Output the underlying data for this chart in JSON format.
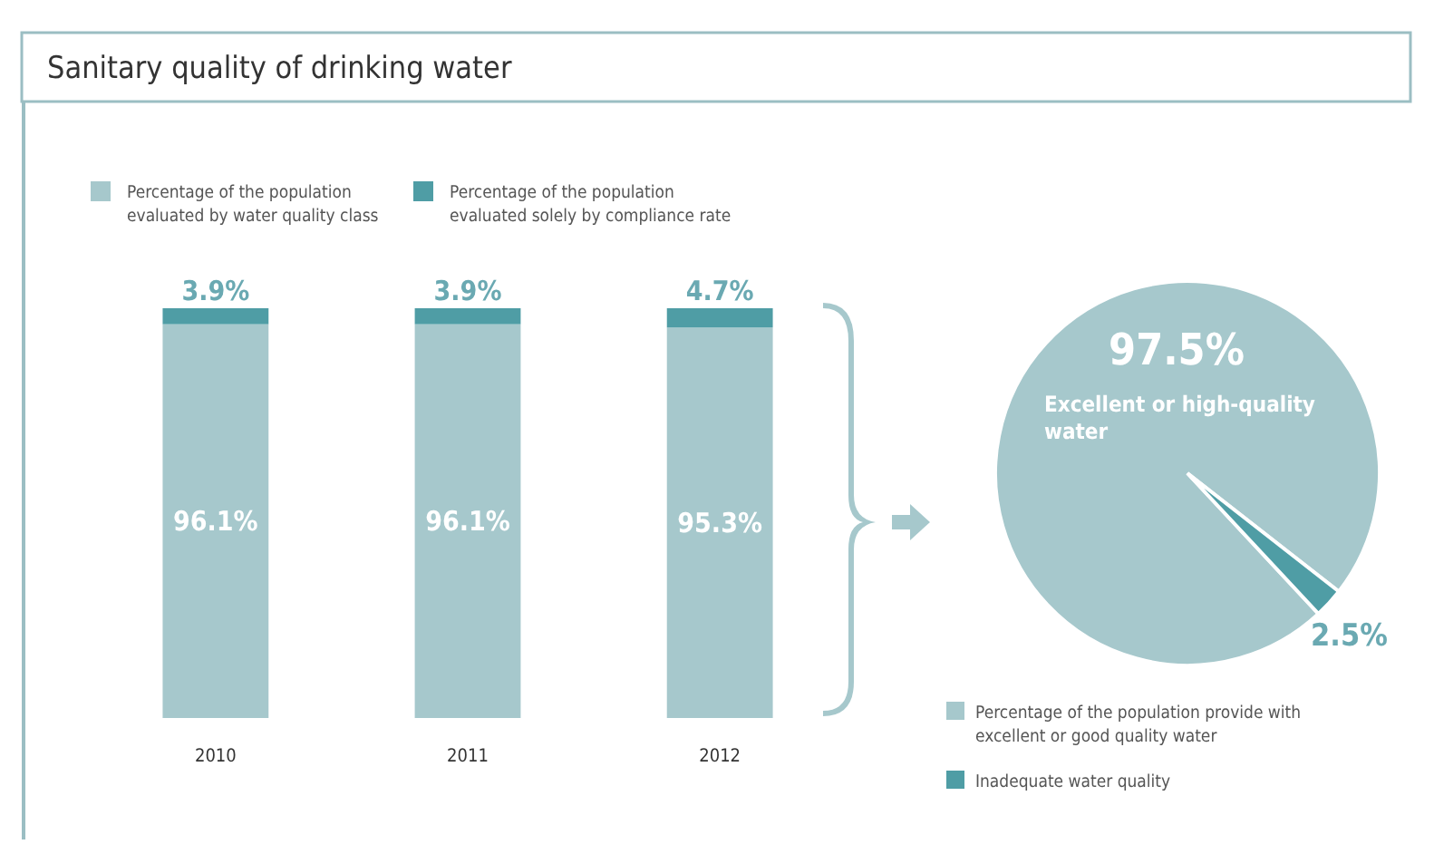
{
  "chart_data": [
    {
      "type": "bar",
      "title": "Sanitary quality of drinking water",
      "stacked": true,
      "legend": "top",
      "categories": [
        "2010",
        "2011",
        "2012"
      ],
      "series": [
        {
          "name": "Percentage of the population evaluated by water quality class",
          "color": "#a6c8cc",
          "values": [
            96.1,
            96.1,
            95.3
          ],
          "value_labels": [
            "96.1%",
            "96.1%",
            "95.3%"
          ]
        },
        {
          "name": "Percentage of the population evaluated solely by compliance rate",
          "color": "#4f9da5",
          "values": [
            3.9,
            3.9,
            4.7
          ],
          "value_labels": [
            "3.9%",
            "3.9%",
            "4.7%"
          ]
        }
      ]
    },
    {
      "type": "pie",
      "legend": "bottom",
      "categories": [
        "Percentage of the population provide with excellent or good quality water",
        "Inadequate water quality"
      ],
      "values": [
        97.5,
        2.5
      ],
      "value_labels": [
        "97.5%",
        "2.5%"
      ],
      "colors": [
        "#a6c8cc",
        "#4f9da5"
      ],
      "annotations": [
        "Excellent or high-quality water"
      ]
    }
  ]
}
